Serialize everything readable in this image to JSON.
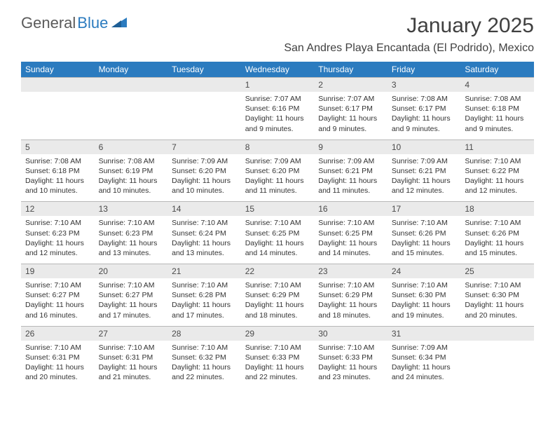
{
  "logo": {
    "text1": "General",
    "text2": "Blue"
  },
  "title": "January 2025",
  "location": "San Andres Playa Encantada (El Podrido), Mexico",
  "colors": {
    "header_bg": "#2b7bbf",
    "header_text": "#ffffff",
    "daynum_bg": "#eaeaea",
    "border": "#b8b8b8",
    "text": "#333333",
    "logo_gray": "#5a5a5a",
    "logo_blue": "#2b7bbf",
    "page_bg": "#ffffff"
  },
  "typography": {
    "month_size": 30,
    "location_size": 16,
    "dayhead_size": 12,
    "cell_size": 10.5
  },
  "day_names": [
    "Sunday",
    "Monday",
    "Tuesday",
    "Wednesday",
    "Thursday",
    "Friday",
    "Saturday"
  ],
  "weeks": [
    [
      null,
      null,
      null,
      {
        "n": "1",
        "sunrise": "7:07 AM",
        "sunset": "6:16 PM",
        "daylight": "11 hours and 9 minutes."
      },
      {
        "n": "2",
        "sunrise": "7:07 AM",
        "sunset": "6:17 PM",
        "daylight": "11 hours and 9 minutes."
      },
      {
        "n": "3",
        "sunrise": "7:08 AM",
        "sunset": "6:17 PM",
        "daylight": "11 hours and 9 minutes."
      },
      {
        "n": "4",
        "sunrise": "7:08 AM",
        "sunset": "6:18 PM",
        "daylight": "11 hours and 9 minutes."
      }
    ],
    [
      {
        "n": "5",
        "sunrise": "7:08 AM",
        "sunset": "6:18 PM",
        "daylight": "11 hours and 10 minutes."
      },
      {
        "n": "6",
        "sunrise": "7:08 AM",
        "sunset": "6:19 PM",
        "daylight": "11 hours and 10 minutes."
      },
      {
        "n": "7",
        "sunrise": "7:09 AM",
        "sunset": "6:20 PM",
        "daylight": "11 hours and 10 minutes."
      },
      {
        "n": "8",
        "sunrise": "7:09 AM",
        "sunset": "6:20 PM",
        "daylight": "11 hours and 11 minutes."
      },
      {
        "n": "9",
        "sunrise": "7:09 AM",
        "sunset": "6:21 PM",
        "daylight": "11 hours and 11 minutes."
      },
      {
        "n": "10",
        "sunrise": "7:09 AM",
        "sunset": "6:21 PM",
        "daylight": "11 hours and 12 minutes."
      },
      {
        "n": "11",
        "sunrise": "7:10 AM",
        "sunset": "6:22 PM",
        "daylight": "11 hours and 12 minutes."
      }
    ],
    [
      {
        "n": "12",
        "sunrise": "7:10 AM",
        "sunset": "6:23 PM",
        "daylight": "11 hours and 12 minutes."
      },
      {
        "n": "13",
        "sunrise": "7:10 AM",
        "sunset": "6:23 PM",
        "daylight": "11 hours and 13 minutes."
      },
      {
        "n": "14",
        "sunrise": "7:10 AM",
        "sunset": "6:24 PM",
        "daylight": "11 hours and 13 minutes."
      },
      {
        "n": "15",
        "sunrise": "7:10 AM",
        "sunset": "6:25 PM",
        "daylight": "11 hours and 14 minutes."
      },
      {
        "n": "16",
        "sunrise": "7:10 AM",
        "sunset": "6:25 PM",
        "daylight": "11 hours and 14 minutes."
      },
      {
        "n": "17",
        "sunrise": "7:10 AM",
        "sunset": "6:26 PM",
        "daylight": "11 hours and 15 minutes."
      },
      {
        "n": "18",
        "sunrise": "7:10 AM",
        "sunset": "6:26 PM",
        "daylight": "11 hours and 15 minutes."
      }
    ],
    [
      {
        "n": "19",
        "sunrise": "7:10 AM",
        "sunset": "6:27 PM",
        "daylight": "11 hours and 16 minutes."
      },
      {
        "n": "20",
        "sunrise": "7:10 AM",
        "sunset": "6:27 PM",
        "daylight": "11 hours and 17 minutes."
      },
      {
        "n": "21",
        "sunrise": "7:10 AM",
        "sunset": "6:28 PM",
        "daylight": "11 hours and 17 minutes."
      },
      {
        "n": "22",
        "sunrise": "7:10 AM",
        "sunset": "6:29 PM",
        "daylight": "11 hours and 18 minutes."
      },
      {
        "n": "23",
        "sunrise": "7:10 AM",
        "sunset": "6:29 PM",
        "daylight": "11 hours and 18 minutes."
      },
      {
        "n": "24",
        "sunrise": "7:10 AM",
        "sunset": "6:30 PM",
        "daylight": "11 hours and 19 minutes."
      },
      {
        "n": "25",
        "sunrise": "7:10 AM",
        "sunset": "6:30 PM",
        "daylight": "11 hours and 20 minutes."
      }
    ],
    [
      {
        "n": "26",
        "sunrise": "7:10 AM",
        "sunset": "6:31 PM",
        "daylight": "11 hours and 20 minutes."
      },
      {
        "n": "27",
        "sunrise": "7:10 AM",
        "sunset": "6:31 PM",
        "daylight": "11 hours and 21 minutes."
      },
      {
        "n": "28",
        "sunrise": "7:10 AM",
        "sunset": "6:32 PM",
        "daylight": "11 hours and 22 minutes."
      },
      {
        "n": "29",
        "sunrise": "7:10 AM",
        "sunset": "6:33 PM",
        "daylight": "11 hours and 22 minutes."
      },
      {
        "n": "30",
        "sunrise": "7:10 AM",
        "sunset": "6:33 PM",
        "daylight": "11 hours and 23 minutes."
      },
      {
        "n": "31",
        "sunrise": "7:09 AM",
        "sunset": "6:34 PM",
        "daylight": "11 hours and 24 minutes."
      },
      null
    ]
  ],
  "labels": {
    "sunrise": "Sunrise:",
    "sunset": "Sunset:",
    "daylight": "Daylight:"
  }
}
